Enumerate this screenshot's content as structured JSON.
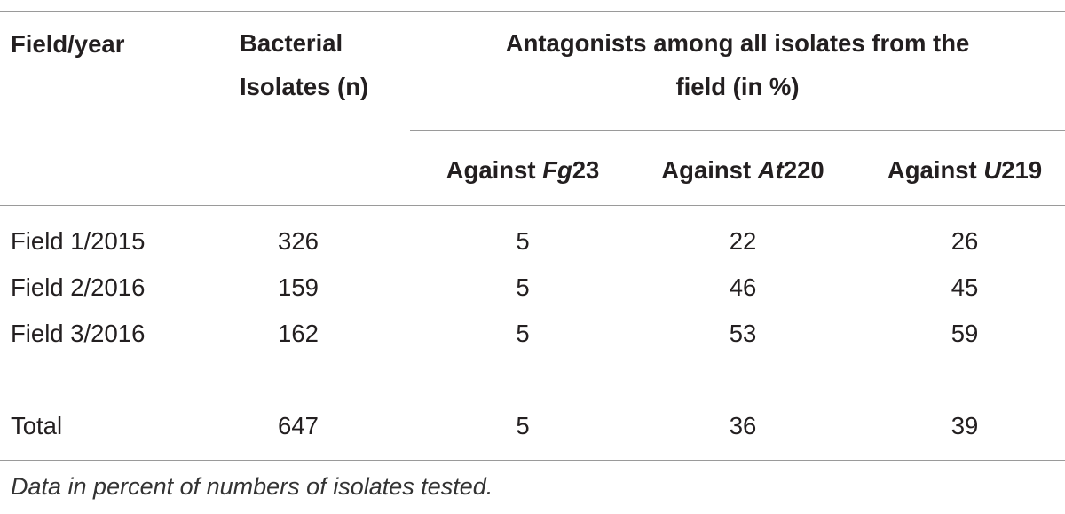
{
  "table": {
    "headers": {
      "field_year": "Field/year",
      "isolates_line1": "Bacterial",
      "isolates_line2": "Isolates (n)",
      "antagonists_line1": "Antagonists among all isolates from the",
      "antagonists_line2": "field (in %)",
      "sub": [
        {
          "prefix": "Against ",
          "organism": "Fg",
          "suffix": "23"
        },
        {
          "prefix": "Against ",
          "organism": "At",
          "suffix": "220"
        },
        {
          "prefix": "Against ",
          "organism": "U",
          "suffix": "219"
        }
      ]
    },
    "rows": [
      {
        "field": "Field 1/2015",
        "isolates": "326",
        "fg23": "5",
        "at220": "22",
        "u219": "26"
      },
      {
        "field": "Field 2/2016",
        "isolates": "159",
        "fg23": "5",
        "at220": "46",
        "u219": "45"
      },
      {
        "field": "Field 3/2016",
        "isolates": "162",
        "fg23": "5",
        "at220": "53",
        "u219": "59"
      }
    ],
    "total": {
      "field": "Total",
      "isolates": "647",
      "fg23": "5",
      "at220": "36",
      "u219": "39"
    },
    "footnote": "Data in percent of numbers of isolates tested."
  }
}
